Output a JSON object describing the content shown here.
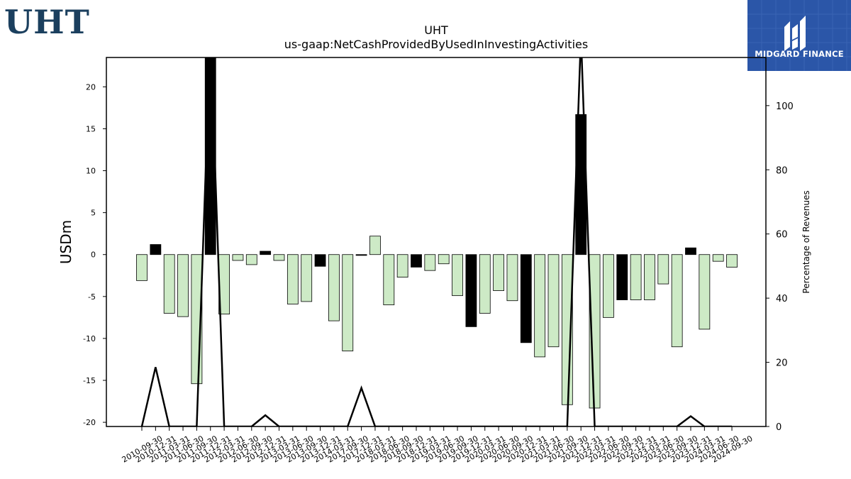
{
  "brand": {
    "left_logo": "UHT",
    "right_logo": "MIDGARD FINANCE"
  },
  "chart_data": {
    "type": "bar",
    "title": "UHT",
    "subtitle": "us-gaap:NetCashProvidedByUsedInInvestingActivities",
    "ylabel": "USDm",
    "y2label": "Percentage of Revenues",
    "ylim": [
      -20.5,
      23.5
    ],
    "y2lim": [
      0,
      115
    ],
    "yticks": [
      -20,
      -15,
      -10,
      -5,
      0,
      5,
      10,
      15,
      20
    ],
    "y2ticks": [
      0,
      20,
      40,
      60,
      80,
      100
    ],
    "categories": [
      "2010-09-30",
      "2010-12-31",
      "2011-03-31",
      "2011-06-30",
      "2011-09-30",
      "2011-12-31",
      "2012-03-31",
      "2012-06-30",
      "2012-09-30",
      "2012-12-31",
      "2013-03-31",
      "2013-06-30",
      "2013-09-30",
      "2013-12-31",
      "2014-03-31",
      "2017-09-30",
      "2017-12-31",
      "2018-03-31",
      "2018-06-30",
      "2018-09-30",
      "2018-12-31",
      "2019-03-31",
      "2019-06-30",
      "2019-09-30",
      "2019-12-31",
      "2020-03-31",
      "2020-06-30",
      "2020-09-30",
      "2020-12-31",
      "2021-03-31",
      "2021-06-30",
      "2021-09-30",
      "2021-12-31",
      "2022-03-31",
      "2022-06-30",
      "2022-09-30",
      "2022-12-31",
      "2023-03-31",
      "2023-06-30",
      "2023-09-30",
      "2023-12-31",
      "2024-03-31",
      "2024-06-30",
      "2024-09-30"
    ],
    "series": [
      {
        "values": [
          -3.1,
          1.2,
          -7.0,
          -7.4,
          -15.4,
          23.5,
          -7.1,
          -0.7,
          -1.2,
          0.4,
          -0.7,
          -5.9,
          -5.6,
          -1.4,
          -7.9,
          -11.5,
          -0.1,
          2.2,
          -6.0,
          -2.7,
          -1.5,
          -1.9,
          -1.1,
          -4.9,
          -8.6,
          -7.0,
          -4.3,
          -5.5,
          -10.5,
          -12.2,
          -11.0,
          -17.9,
          16.7,
          -18.3,
          -7.5,
          -5.4,
          -5.4,
          -5.4,
          -3.5,
          -11.0,
          0.8,
          -8.9,
          -0.8,
          -1.5
        ],
        "highlight": [
          false,
          true,
          false,
          false,
          false,
          true,
          false,
          false,
          false,
          true,
          false,
          false,
          false,
          true,
          false,
          false,
          true,
          false,
          false,
          false,
          true,
          false,
          false,
          false,
          true,
          false,
          false,
          false,
          true,
          false,
          false,
          false,
          true,
          false,
          false,
          true,
          false,
          false,
          false,
          false,
          true,
          false,
          false,
          false
        ]
      },
      {
        "axis": "secondary",
        "type": "line",
        "values": [
          0,
          18.5,
          0,
          0,
          0,
          122,
          0,
          0,
          0,
          3.5,
          0,
          0,
          0,
          0,
          0,
          0,
          12,
          0,
          0,
          0,
          0,
          0,
          0,
          0,
          0,
          0,
          0,
          0,
          0,
          0,
          0,
          0,
          122,
          0,
          0,
          0,
          0,
          0,
          0,
          0,
          3.2,
          0,
          0,
          0
        ]
      }
    ],
    "colors": {
      "positive_fill": "#000000",
      "negative_fill": "#cdeac6",
      "bar_edge": "#000000",
      "line": "#000000"
    }
  }
}
